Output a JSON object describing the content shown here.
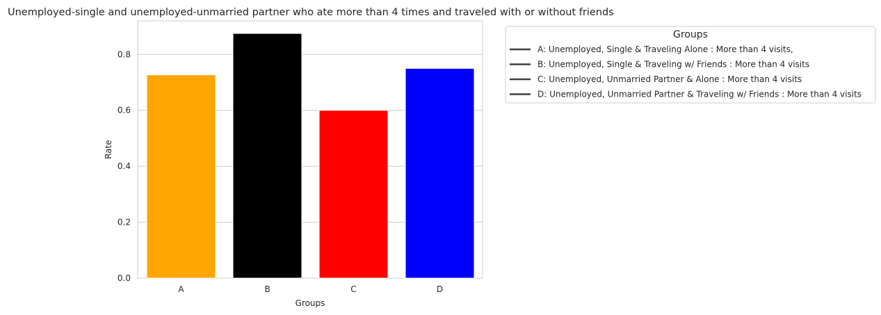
{
  "chart_data": {
    "type": "bar",
    "title": "Unemployed-single and unemployed-unmarried partner who ate more than 4 times and traveled with or without friends",
    "xlabel": "Groups",
    "ylabel": "Rate",
    "categories": [
      "A",
      "B",
      "C",
      "D"
    ],
    "values": [
      0.727,
      0.875,
      0.6,
      0.75
    ],
    "colors": [
      "#FFA500",
      "#000000",
      "#FF0000",
      "#0000FF"
    ],
    "ylim": [
      0,
      0.92
    ],
    "yticks": [
      0.0,
      0.2,
      0.4,
      0.6,
      0.8
    ],
    "ytick_labels": [
      "0.0",
      "0.2",
      "0.4",
      "0.6",
      "0.8"
    ],
    "grid": "horizontal",
    "legend": {
      "title": "Groups",
      "placement": "outside right, top",
      "entries": [
        "A: Unemployed, Single & Traveling Alone : More than 4 visits,",
        "B: Unemployed, Single & Traveling w/ Friends : More than 4 visits",
        "C: Unemployed, Unmarried Partner & Alone : More than 4 visits",
        "D: Unemployed, Unmarried Partner & Traveling w/ Friends : More than 4 visits"
      ],
      "line_color": "#3d3d3d"
    }
  }
}
